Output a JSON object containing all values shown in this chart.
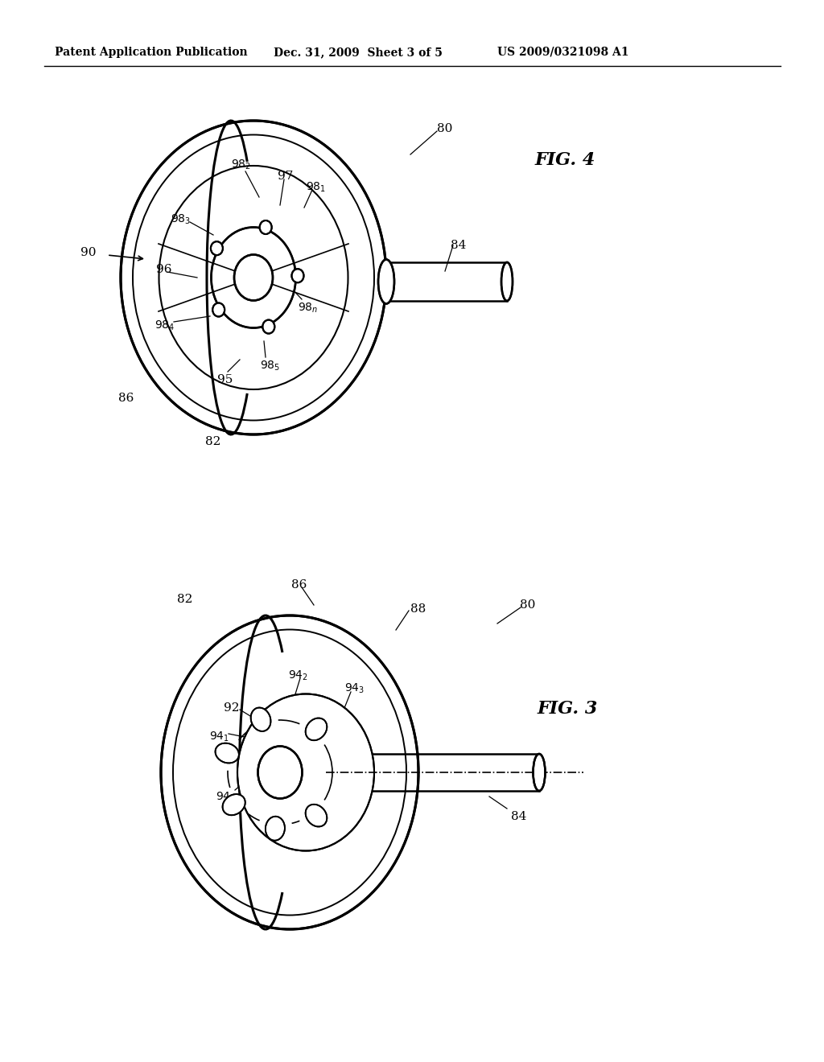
{
  "background_color": "#ffffff",
  "header_left": "Patent Application Publication",
  "header_center": "Dec. 31, 2009  Sheet 3 of 5",
  "header_right": "US 2009/0321098 A1",
  "line_color": "#000000",
  "text_color": "#000000"
}
